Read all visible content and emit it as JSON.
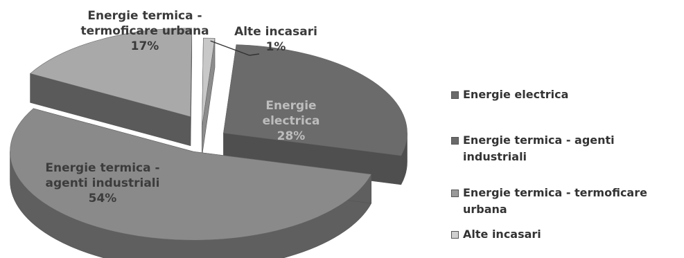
{
  "chart_data": {
    "type": "pie",
    "title": "",
    "slices": [
      {
        "label": "Energie electrica",
        "chart_label_lines": [
          "Energie",
          "electrica"
        ],
        "value": 28,
        "value_label": "28%",
        "color": "#6b6b6b",
        "side_color": "#4f4f4f",
        "label_color": "#bdbdbd"
      },
      {
        "label": "Energie termica - agenti industriali",
        "chart_label_lines": [
          "Energie termica -",
          "agenti industriali"
        ],
        "value": 54,
        "value_label": "54%",
        "color": "#8a8a8a",
        "side_color": "#5f5f5f",
        "label_color": "#3c3c3c"
      },
      {
        "label": "Energie termica - termoficare urbana",
        "chart_label_lines": [
          "Energie termica -",
          "termoficare urbana"
        ],
        "value": 17,
        "value_label": "17%",
        "color": "#a9a9a9",
        "side_color": "#5a5a5a",
        "label_color": "#3a3a3a"
      },
      {
        "label": "Alte incasari",
        "chart_label_lines": [
          "Alte incasari"
        ],
        "value": 1,
        "value_label": "1%",
        "color": "#c8c8c8",
        "side_color": "#8c8c8c",
        "label_color": "#3a3a3a"
      }
    ],
    "exploded": true,
    "three_d": true,
    "legend_position": "right"
  }
}
